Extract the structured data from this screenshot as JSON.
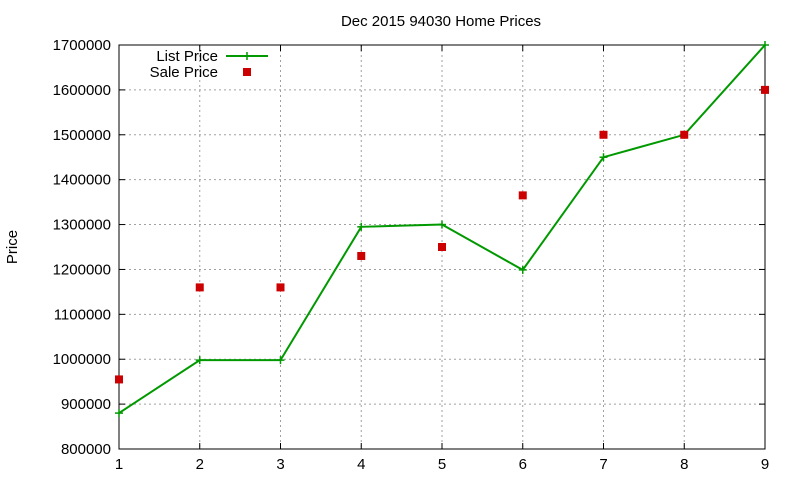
{
  "chart_data": {
    "type": "line",
    "title": "Dec 2015 94030 Home Prices",
    "xlabel": "",
    "ylabel": "Price",
    "x": [
      1,
      2,
      3,
      4,
      5,
      6,
      7,
      8,
      9
    ],
    "xlim": [
      1,
      9
    ],
    "ylim": [
      800000,
      1700000
    ],
    "yticks": [
      "800000",
      "900000",
      "1000000",
      "1100000",
      "1200000",
      "1300000",
      "1400000",
      "1500000",
      "1600000",
      "1700000"
    ],
    "xticks": [
      "1",
      "2",
      "3",
      "4",
      "5",
      "6",
      "7",
      "8",
      "9"
    ],
    "grid": true,
    "legend_position": "top-left",
    "series": [
      {
        "name": "List Price",
        "style": "line+cross",
        "color": "#009900",
        "values": [
          880000,
          998000,
          998000,
          1295000,
          1300000,
          1199000,
          1450000,
          1500000,
          1700000
        ]
      },
      {
        "name": "Sale Price",
        "style": "square-points",
        "color": "#cc0000",
        "values": [
          955000,
          1160000,
          1160000,
          1230000,
          1250000,
          1365000,
          1500000,
          1500000,
          1600000
        ]
      }
    ]
  }
}
